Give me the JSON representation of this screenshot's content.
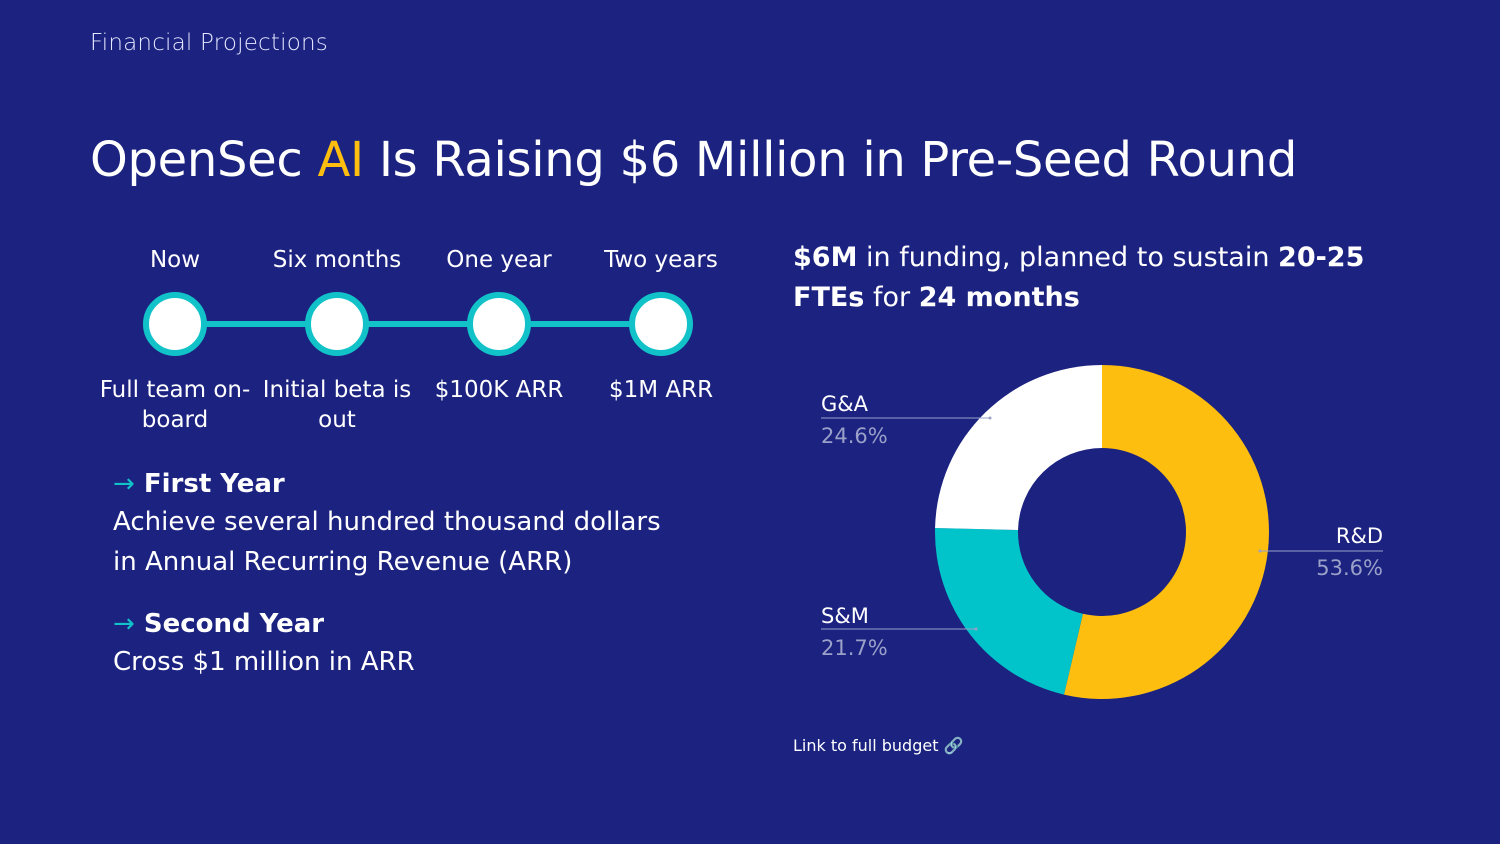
{
  "header": {
    "section_label": "Financial Projections",
    "title_before": "OpenSec ",
    "title_accent": "AI",
    "title_after": " Is Raising $6 Million in Pre-Seed Round",
    "accent_color": "#fdbe0f"
  },
  "timeline": [
    {
      "label": "Now",
      "desc": "Full team on-board"
    },
    {
      "label": "Six months",
      "desc": "Initial beta is out"
    },
    {
      "label": "One year",
      "desc": "$100K ARR"
    },
    {
      "label": "Two years",
      "desc": "$1M ARR"
    }
  ],
  "goals": [
    {
      "arrow": "→",
      "title": "First Year",
      "body": "Achieve several hundred thousand dollars in Annual Recurring Revenue (ARR)"
    },
    {
      "arrow": "→",
      "title": "Second Year",
      "body": "Cross $1 million in ARR"
    }
  ],
  "funding": {
    "amount": "$6M",
    "text1": " in funding, planned to sustain ",
    "ftes": "20-25 FTEs",
    "text2": " for ",
    "duration": "24 months"
  },
  "chart_data": {
    "type": "pie",
    "donut": true,
    "title": "",
    "slices": [
      {
        "label": "R&D",
        "value": 53.6,
        "display": "53.6%",
        "color": "#fdbe0f"
      },
      {
        "label": "S&M",
        "value": 21.7,
        "display": "21.7%",
        "color": "#00c4c9"
      },
      {
        "label": "G&A",
        "value": 24.6,
        "display": "24.6%",
        "color": "#ffffff"
      }
    ],
    "start": "12 o'clock",
    "direction": "clockwise",
    "legend": "none"
  },
  "link": {
    "label": "Link to full budget",
    "icon": "link-icon",
    "icon_glyph": "🔗"
  },
  "colors": {
    "background": "#1b2280",
    "teal": "#12c2c9",
    "yellow": "#fdbe0f"
  }
}
